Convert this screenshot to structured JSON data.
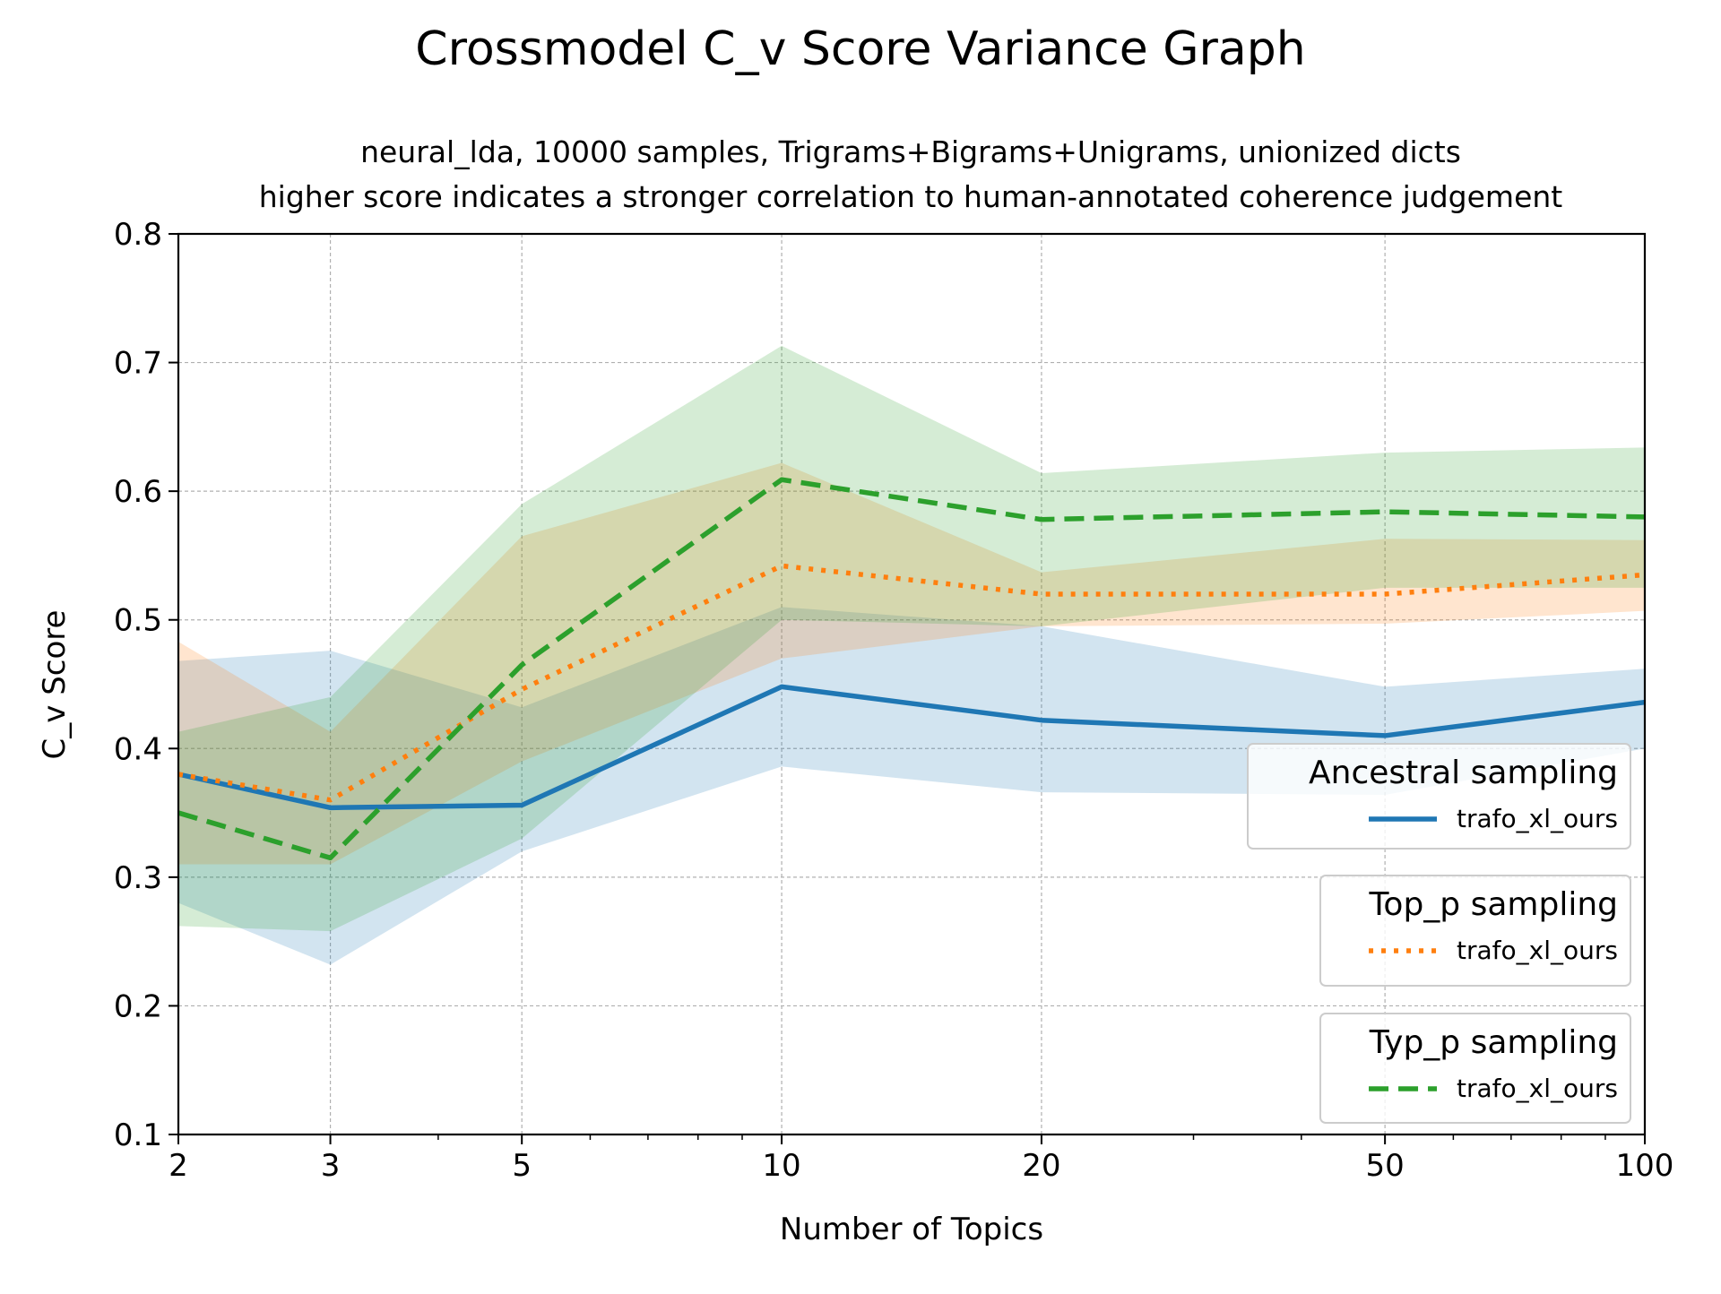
{
  "chart_data": {
    "type": "line",
    "title": "Crossmodel C_v Score Variance Graph",
    "subtitle_lines": [
      "neural_lda, 10000 samples, Trigrams+Bigrams+Unigrams, unionized dicts",
      "higher score indicates a stronger correlation to human-annotated coherence judgement"
    ],
    "xlabel": "Number of Topics",
    "ylabel": "C_v Score",
    "x_scale": "log",
    "x": [
      2,
      3,
      5,
      10,
      20,
      50,
      100
    ],
    "x_tick_labels": [
      "2",
      "3",
      "5",
      "10",
      "20",
      "50",
      "100"
    ],
    "xlim": [
      2,
      100
    ],
    "ylim": [
      0.1,
      0.8
    ],
    "y_ticks": [
      0.1,
      0.2,
      0.3,
      0.4,
      0.5,
      0.6,
      0.7,
      0.8
    ],
    "y_tick_labels": [
      "0.1",
      "0.2",
      "0.3",
      "0.4",
      "0.5",
      "0.6",
      "0.7",
      "0.8"
    ],
    "grid": true,
    "legend_placement": "right",
    "series": [
      {
        "group": "Ancestral sampling",
        "name": "trafo_xl_ours",
        "style": "solid",
        "color": "#1f77b4",
        "values": [
          0.38,
          0.354,
          0.356,
          0.448,
          0.422,
          0.41,
          0.436
        ],
        "band_low": [
          0.28,
          0.232,
          0.32,
          0.386,
          0.366,
          0.364,
          0.4
        ],
        "band_high": [
          0.468,
          0.476,
          0.432,
          0.51,
          0.495,
          0.448,
          0.462
        ]
      },
      {
        "group": "Top_p sampling",
        "name": "trafo_xl_ours",
        "style": "dotted",
        "color": "#ff7f0e",
        "values": [
          0.38,
          0.36,
          0.446,
          0.542,
          0.52,
          0.52,
          0.535
        ],
        "band_low": [
          0.31,
          0.31,
          0.39,
          0.47,
          0.495,
          0.497,
          0.507
        ],
        "band_high": [
          0.483,
          0.413,
          0.565,
          0.622,
          0.537,
          0.563,
          0.562
        ]
      },
      {
        "group": "Typ_p sampling",
        "name": "trafo_xl_ours",
        "style": "dashed",
        "color": "#2ca02c",
        "values": [
          0.35,
          0.315,
          0.465,
          0.609,
          0.578,
          0.584,
          0.58
        ],
        "band_low": [
          0.262,
          0.258,
          0.33,
          0.5,
          0.495,
          0.525,
          0.525
        ],
        "band_high": [
          0.413,
          0.44,
          0.59,
          0.713,
          0.614,
          0.63,
          0.634
        ]
      }
    ]
  }
}
